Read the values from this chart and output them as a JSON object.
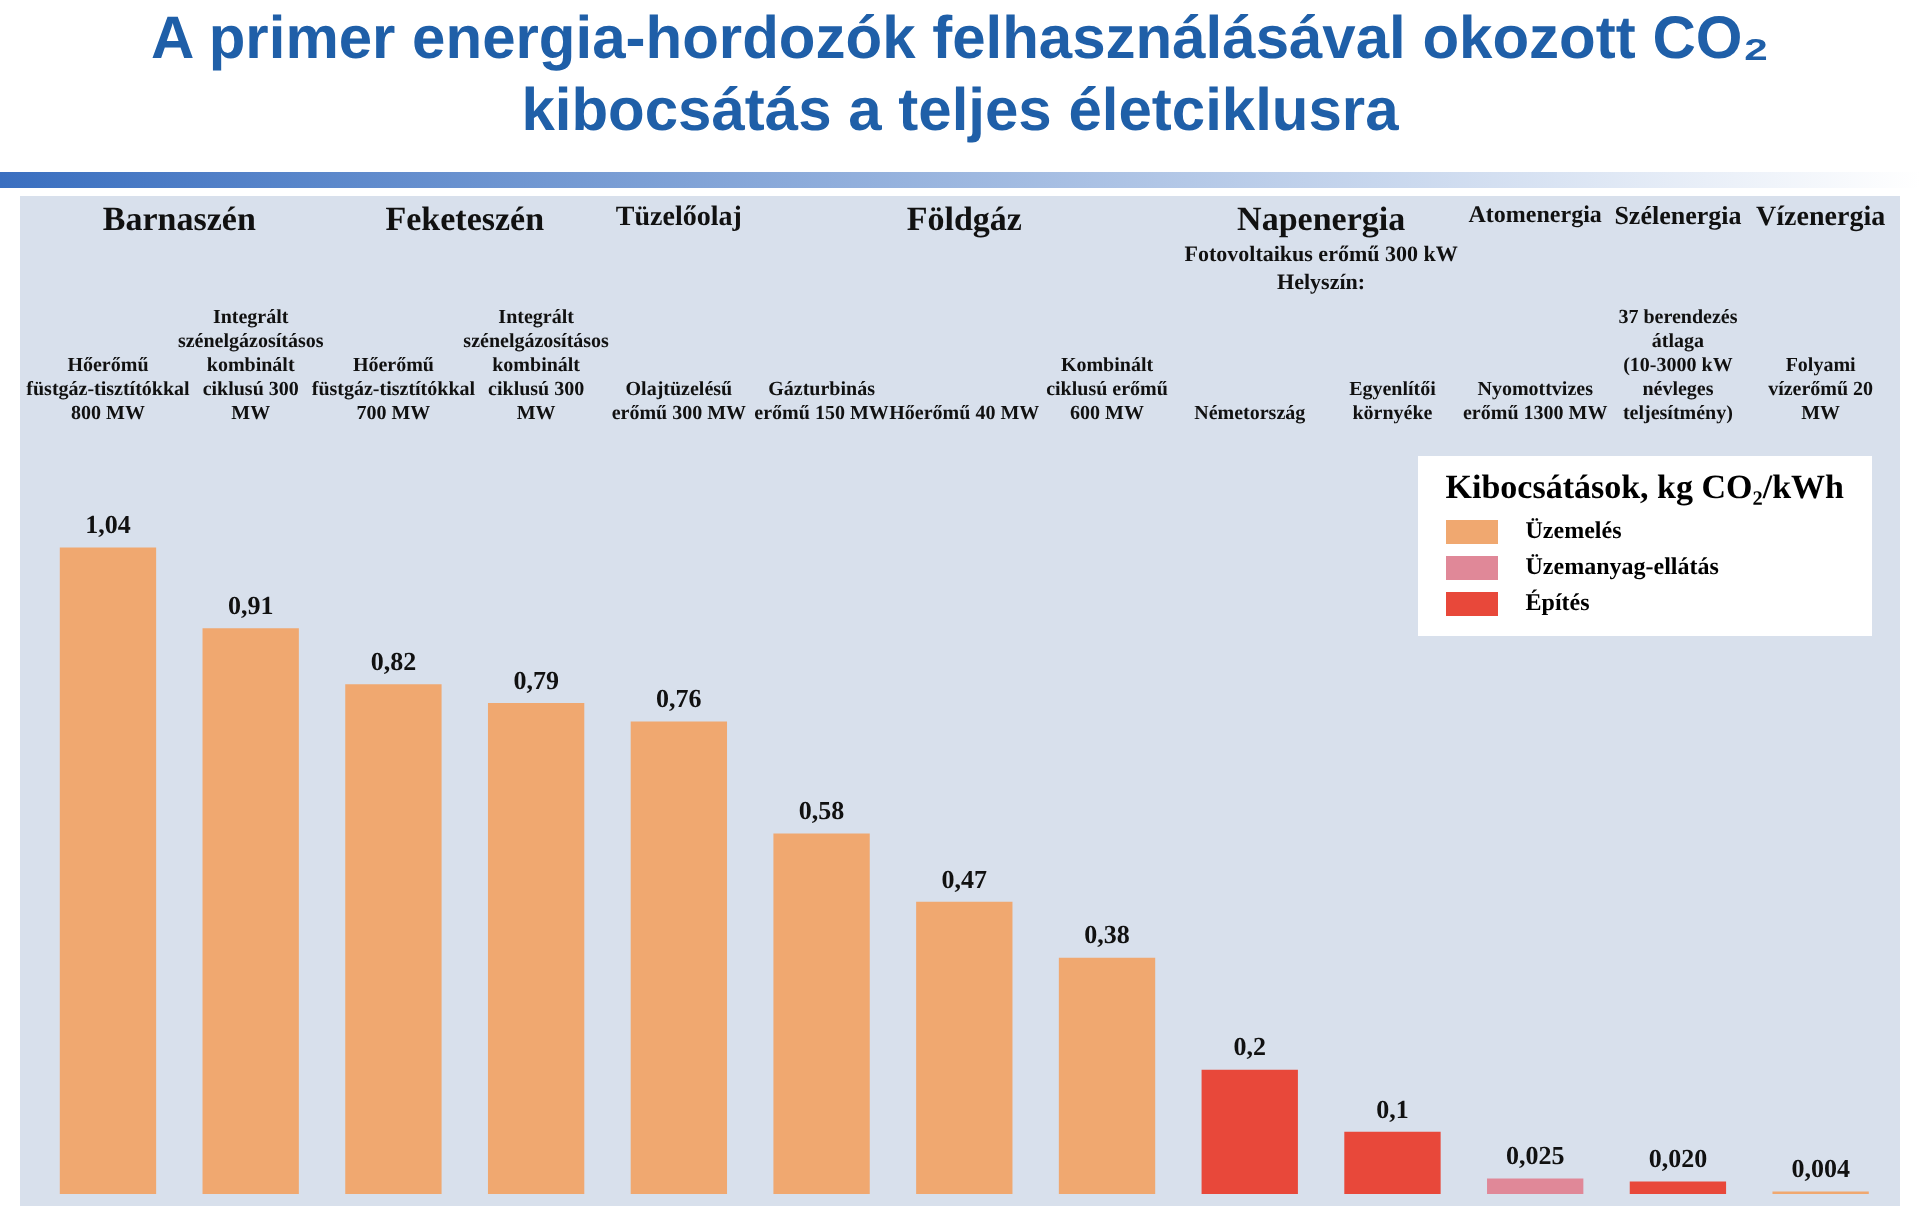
{
  "chart_data": {
    "type": "bar",
    "title": "A primer energia-hordozók felhasználásával okozott CO₂ kibocsátás a teljes életciklusra",
    "legend_title": "Kibocsátások, kg CO₂/kWh",
    "categories": [
      "Hőerőmű füstgáz-tisztítókkal 800 MW",
      "Integrált szénelgázosításos kombinált ciklusú 300 MW",
      "Hőerőmű füstgáz-tisztítókkal 700 MW",
      "Integrált szénelgázosításos kombinált ciklusú 300 MW",
      "Olajtüzelésű erőmű 300 MW",
      "Gázturbinás erőmű 150 MW",
      "Hőerőmű 40 MW",
      "Kombinált ciklusú erőmű 600 MW",
      "Németország",
      "Egyenlítői környéke",
      "Nyomottvizes erőmű 1300 MW",
      "37 berendezés átlaga (10-3000 kW névleges teljesítmény)",
      "Folyami vízerőmű 20 MW"
    ],
    "stacked": true,
    "series": [
      {
        "name": "Üzemelés",
        "color": "#f0a870",
        "values": [
          1.04,
          0.91,
          0.82,
          0.79,
          0.76,
          0.58,
          0.47,
          0.38,
          null,
          null,
          null,
          null,
          0.004
        ],
        "value_labels": [
          "1,04",
          "0,91",
          "0,82",
          "0,79",
          "0,76",
          "0,58",
          "0,47",
          "0,38",
          null,
          null,
          null,
          null,
          "0,004"
        ]
      },
      {
        "name": "Üzemanyag-ellátás",
        "color": "#e08898",
        "values": [
          null,
          null,
          null,
          null,
          null,
          null,
          null,
          null,
          null,
          null,
          0.025,
          null,
          null
        ],
        "value_labels": [
          null,
          null,
          null,
          null,
          null,
          null,
          null,
          null,
          null,
          null,
          "0,025",
          null,
          null
        ]
      },
      {
        "name": "Építés",
        "color": "#e8483a",
        "values": [
          null,
          null,
          null,
          null,
          null,
          null,
          null,
          null,
          0.2,
          0.1,
          null,
          0.02,
          null
        ],
        "value_labels": [
          null,
          null,
          null,
          null,
          null,
          null,
          null,
          null,
          "0,2",
          "0,1",
          null,
          "0,020",
          null
        ]
      }
    ],
    "tick_labels": "x",
    "legend": "top right",
    "annotations": [
      "Barnaszén",
      "Feketeszén",
      "Tüzelőolaj",
      "Földgáz",
      "Napenergia",
      "Fotovoltaikus erőmű 300 kW",
      "Helyszín:",
      "Atomenergia",
      "Szélenergia",
      "Vízenergia"
    ]
  }
}
